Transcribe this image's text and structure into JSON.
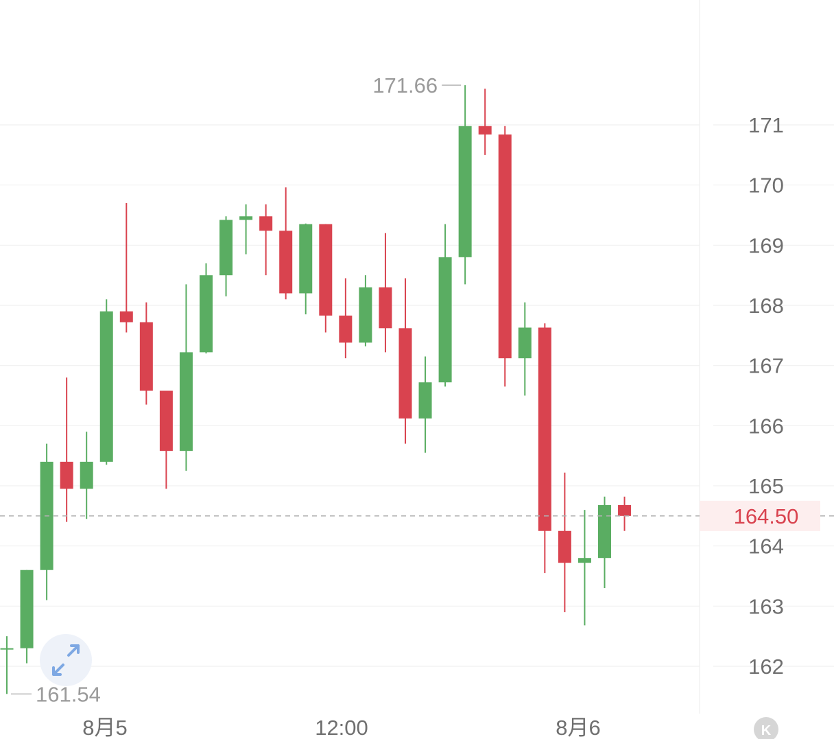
{
  "chart_data": {
    "type": "candlestick",
    "x_labels": [
      "8月5",
      "12:00",
      "8月6"
    ],
    "y_ticks": [
      162,
      163,
      164,
      165,
      166,
      167,
      168,
      169,
      170,
      171
    ],
    "ylim": [
      161.2,
      172.5
    ],
    "grid": true,
    "high_label": "171.66",
    "low_label": "161.54",
    "last_price": "164.50",
    "candles": [
      {
        "o": 162.3,
        "h": 162.5,
        "l": 161.54,
        "c": 162.3
      },
      {
        "o": 162.3,
        "h": 163.6,
        "l": 162.05,
        "c": 163.6
      },
      {
        "o": 163.6,
        "h": 165.7,
        "l": 163.1,
        "c": 165.4
      },
      {
        "o": 165.4,
        "h": 166.8,
        "l": 164.4,
        "c": 164.95
      },
      {
        "o": 164.95,
        "h": 165.9,
        "l": 164.45,
        "c": 165.4
      },
      {
        "o": 165.4,
        "h": 168.1,
        "l": 165.35,
        "c": 167.9
      },
      {
        "o": 167.9,
        "h": 169.7,
        "l": 167.55,
        "c": 167.72
      },
      {
        "o": 167.72,
        "h": 168.05,
        "l": 166.35,
        "c": 166.58
      },
      {
        "o": 166.58,
        "h": 166.58,
        "l": 164.95,
        "c": 165.58
      },
      {
        "o": 165.58,
        "h": 168.35,
        "l": 165.25,
        "c": 167.22
      },
      {
        "o": 167.22,
        "h": 168.7,
        "l": 167.2,
        "c": 168.5
      },
      {
        "o": 168.5,
        "h": 169.48,
        "l": 168.15,
        "c": 169.42
      },
      {
        "o": 169.42,
        "h": 169.68,
        "l": 168.85,
        "c": 169.48
      },
      {
        "o": 169.48,
        "h": 169.68,
        "l": 168.5,
        "c": 169.24
      },
      {
        "o": 169.24,
        "h": 169.96,
        "l": 168.1,
        "c": 168.2
      },
      {
        "o": 168.2,
        "h": 169.36,
        "l": 167.85,
        "c": 169.35
      },
      {
        "o": 169.35,
        "h": 169.35,
        "l": 167.55,
        "c": 167.83
      },
      {
        "o": 167.83,
        "h": 168.45,
        "l": 167.12,
        "c": 167.38
      },
      {
        "o": 167.38,
        "h": 168.5,
        "l": 167.32,
        "c": 168.3
      },
      {
        "o": 168.3,
        "h": 169.2,
        "l": 167.22,
        "c": 167.62
      },
      {
        "o": 167.62,
        "h": 168.45,
        "l": 165.7,
        "c": 166.12
      },
      {
        "o": 166.12,
        "h": 167.15,
        "l": 165.55,
        "c": 166.72
      },
      {
        "o": 166.72,
        "h": 169.35,
        "l": 166.65,
        "c": 168.8
      },
      {
        "o": 168.8,
        "h": 171.66,
        "l": 168.35,
        "c": 170.98
      },
      {
        "o": 170.98,
        "h": 171.6,
        "l": 170.5,
        "c": 170.84
      },
      {
        "o": 170.84,
        "h": 170.98,
        "l": 166.65,
        "c": 167.12
      },
      {
        "o": 167.12,
        "h": 168.05,
        "l": 166.5,
        "c": 167.63
      },
      {
        "o": 167.63,
        "h": 167.7,
        "l": 163.55,
        "c": 164.25
      },
      {
        "o": 164.25,
        "h": 165.22,
        "l": 162.9,
        "c": 163.72
      },
      {
        "o": 163.72,
        "h": 164.6,
        "l": 162.68,
        "c": 163.8
      },
      {
        "o": 163.8,
        "h": 164.82,
        "l": 163.3,
        "c": 164.68
      },
      {
        "o": 164.68,
        "h": 164.82,
        "l": 164.25,
        "c": 164.5
      }
    ]
  },
  "colors": {
    "up": "#5aad62",
    "down": "#d9434f",
    "last_price_line": "#b0b0b0",
    "last_price_bg": "#fdeeee"
  },
  "icons": {
    "expand": "expand-arrows-icon",
    "k": "k-line-icon"
  },
  "k_button_label": "K"
}
